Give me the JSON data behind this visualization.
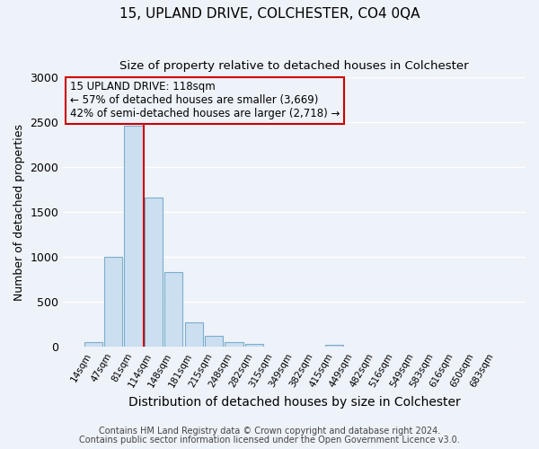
{
  "title": "15, UPLAND DRIVE, COLCHESTER, CO4 0QA",
  "subtitle": "Size of property relative to detached houses in Colchester",
  "xlabel": "Distribution of detached houses by size in Colchester",
  "ylabel": "Number of detached properties",
  "bin_labels": [
    "14sqm",
    "47sqm",
    "81sqm",
    "114sqm",
    "148sqm",
    "181sqm",
    "215sqm",
    "248sqm",
    "282sqm",
    "315sqm",
    "349sqm",
    "382sqm",
    "415sqm",
    "449sqm",
    "482sqm",
    "516sqm",
    "549sqm",
    "583sqm",
    "616sqm",
    "650sqm",
    "683sqm"
  ],
  "bar_values": [
    55,
    1000,
    2460,
    1660,
    830,
    270,
    120,
    50,
    35,
    0,
    0,
    0,
    20,
    0,
    0,
    0,
    0,
    0,
    0,
    0,
    0
  ],
  "bar_color": "#ccdff0",
  "bar_edgecolor": "#7aaecc",
  "property_line_color": "#cc0000",
  "annotation_title": "15 UPLAND DRIVE: 118sqm",
  "annotation_line1": "← 57% of detached houses are smaller (3,669)",
  "annotation_line2": "42% of semi-detached houses are larger (2,718) →",
  "annotation_box_edgecolor": "#cc0000",
  "ylim": [
    0,
    3000
  ],
  "yticks": [
    0,
    500,
    1000,
    1500,
    2000,
    2500,
    3000
  ],
  "footer1": "Contains HM Land Registry data © Crown copyright and database right 2024.",
  "footer2": "Contains public sector information licensed under the Open Government Licence v3.0.",
  "background_color": "#eef2f9",
  "grid_color": "#ffffff"
}
